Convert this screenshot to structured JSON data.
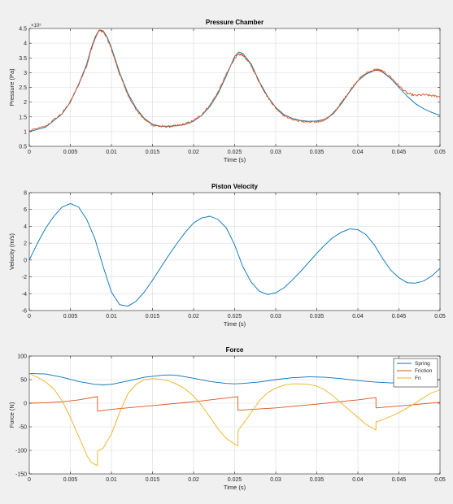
{
  "chart_data": [
    {
      "type": "line",
      "title": "Pressure Chamber",
      "xlabel": "Time (s)",
      "ylabel": "Pressure (Pa)",
      "y_exponent": "×10⁵",
      "xlim": [
        0,
        0.05
      ],
      "ylim": [
        0.5,
        4.5
      ],
      "xticks": [
        0,
        0.005,
        0.01,
        0.015,
        0.02,
        0.025,
        0.03,
        0.035,
        0.04,
        0.045,
        0.05
      ],
      "xtick_labels": [
        "0",
        "0.005",
        "0.01",
        "0.015",
        "0.02",
        "0.025",
        "0.03",
        "0.035",
        "0.04",
        "0.045",
        "0.05"
      ],
      "yticks": [
        0.5,
        1,
        1.5,
        2,
        2.5,
        3,
        3.5,
        4,
        4.5
      ],
      "ytick_labels": [
        "0.5",
        "1",
        "1.5",
        "2",
        "2.5",
        "3",
        "3.5",
        "4",
        "4.5"
      ],
      "grid": true,
      "series": [
        {
          "color": "#0072bd",
          "x": [
            0,
            0.002,
            0.004,
            0.005,
            0.006,
            0.007,
            0.0075,
            0.008,
            0.0085,
            0.009,
            0.0095,
            0.01,
            0.011,
            0.012,
            0.013,
            0.014,
            0.015,
            0.016,
            0.017,
            0.018,
            0.019,
            0.02,
            0.021,
            0.022,
            0.023,
            0.024,
            0.025,
            0.0255,
            0.026,
            0.027,
            0.028,
            0.029,
            0.03,
            0.031,
            0.032,
            0.033,
            0.034,
            0.035,
            0.036,
            0.037,
            0.038,
            0.039,
            0.04,
            0.041,
            0.042,
            0.0425,
            0.043,
            0.044,
            0.045,
            0.046,
            0.047,
            0.048,
            0.049,
            0.05
          ],
          "y": [
            1.0,
            1.15,
            1.6,
            2.0,
            2.6,
            3.3,
            3.8,
            4.2,
            4.45,
            4.42,
            4.2,
            3.85,
            3.0,
            2.3,
            1.8,
            1.45,
            1.25,
            1.18,
            1.18,
            1.2,
            1.25,
            1.35,
            1.55,
            1.85,
            2.3,
            2.9,
            3.55,
            3.7,
            3.65,
            3.3,
            2.7,
            2.2,
            1.82,
            1.58,
            1.45,
            1.38,
            1.35,
            1.36,
            1.42,
            1.6,
            1.95,
            2.35,
            2.72,
            2.95,
            3.07,
            3.08,
            3.02,
            2.8,
            2.5,
            2.2,
            1.95,
            1.78,
            1.65,
            1.55
          ]
        },
        {
          "color": "#d95319",
          "noise": true,
          "x": [
            0,
            0.002,
            0.004,
            0.005,
            0.006,
            0.007,
            0.0075,
            0.008,
            0.0085,
            0.009,
            0.0095,
            0.01,
            0.011,
            0.012,
            0.013,
            0.014,
            0.015,
            0.016,
            0.017,
            0.018,
            0.019,
            0.02,
            0.021,
            0.022,
            0.023,
            0.024,
            0.025,
            0.0255,
            0.026,
            0.027,
            0.028,
            0.029,
            0.03,
            0.031,
            0.032,
            0.033,
            0.034,
            0.035,
            0.036,
            0.037,
            0.038,
            0.039,
            0.04,
            0.041,
            0.042,
            0.0425,
            0.043,
            0.044,
            0.045,
            0.046,
            0.047,
            0.048,
            0.049,
            0.05
          ],
          "y": [
            1.02,
            1.18,
            1.62,
            2.02,
            2.58,
            3.25,
            3.75,
            4.15,
            4.43,
            4.4,
            4.15,
            3.8,
            2.95,
            2.25,
            1.75,
            1.42,
            1.22,
            1.17,
            1.17,
            1.2,
            1.26,
            1.37,
            1.58,
            1.9,
            2.35,
            2.95,
            3.5,
            3.62,
            3.6,
            3.25,
            2.68,
            2.18,
            1.8,
            1.55,
            1.42,
            1.35,
            1.32,
            1.33,
            1.4,
            1.62,
            1.98,
            2.38,
            2.75,
            2.98,
            3.1,
            3.1,
            3.05,
            2.85,
            2.55,
            2.3,
            2.22,
            2.25,
            2.22,
            2.18
          ]
        }
      ]
    },
    {
      "type": "line",
      "title": "Piston Velocity",
      "xlabel": "Time (s)",
      "ylabel": "Velocity (m/s)",
      "xlim": [
        0,
        0.05
      ],
      "ylim": [
        -6,
        8
      ],
      "xticks": [
        0,
        0.005,
        0.01,
        0.015,
        0.02,
        0.025,
        0.03,
        0.035,
        0.04,
        0.045,
        0.05
      ],
      "xtick_labels": [
        "0",
        "0.005",
        "0.01",
        "0.015",
        "0.02",
        "0.025",
        "0.03",
        "0.035",
        "0.04",
        "0.045",
        "0.05"
      ],
      "yticks": [
        -6,
        -4,
        -2,
        0,
        2,
        4,
        6,
        8
      ],
      "ytick_labels": [
        "-6",
        "-4",
        "-2",
        "0",
        "2",
        "4",
        "6",
        "8"
      ],
      "grid": true,
      "series": [
        {
          "color": "#0072bd",
          "x": [
            0,
            0.001,
            0.002,
            0.003,
            0.004,
            0.005,
            0.006,
            0.007,
            0.008,
            0.009,
            0.01,
            0.011,
            0.012,
            0.013,
            0.014,
            0.015,
            0.016,
            0.017,
            0.018,
            0.019,
            0.02,
            0.021,
            0.022,
            0.023,
            0.024,
            0.025,
            0.026,
            0.027,
            0.028,
            0.029,
            0.03,
            0.031,
            0.032,
            0.033,
            0.034,
            0.035,
            0.036,
            0.037,
            0.038,
            0.039,
            0.04,
            0.041,
            0.042,
            0.043,
            0.044,
            0.045,
            0.046,
            0.047,
            0.048,
            0.049,
            0.05
          ],
          "y": [
            0,
            2.0,
            3.8,
            5.2,
            6.3,
            6.7,
            6.3,
            4.8,
            2.5,
            -0.8,
            -3.8,
            -5.3,
            -5.5,
            -4.9,
            -3.8,
            -2.4,
            -0.9,
            0.6,
            2.0,
            3.3,
            4.4,
            5.0,
            5.2,
            4.8,
            3.8,
            1.8,
            -0.8,
            -2.6,
            -3.7,
            -4.1,
            -3.9,
            -3.3,
            -2.4,
            -1.4,
            -0.3,
            0.8,
            1.8,
            2.7,
            3.3,
            3.7,
            3.6,
            3.0,
            1.8,
            0.2,
            -1.2,
            -2.1,
            -2.7,
            -2.75,
            -2.5,
            -1.9,
            -1.0
          ]
        }
      ]
    },
    {
      "type": "line",
      "title": "Force",
      "xlabel": "Time (s)",
      "ylabel": "Force (N)",
      "xlim": [
        0,
        0.05
      ],
      "ylim": [
        -150,
        100
      ],
      "xticks": [
        0,
        0.005,
        0.01,
        0.015,
        0.02,
        0.025,
        0.03,
        0.035,
        0.04,
        0.045,
        0.05
      ],
      "xtick_labels": [
        "0",
        "0.005",
        "0.01",
        "0.015",
        "0.02",
        "0.025",
        "0.03",
        "0.035",
        "0.04",
        "0.045",
        "0.05"
      ],
      "yticks": [
        -150,
        -100,
        -50,
        0,
        50,
        100
      ],
      "ytick_labels": [
        "-150",
        "-100",
        "-50",
        "0",
        "50",
        "100"
      ],
      "grid": true,
      "legend_position": "top-right",
      "series": [
        {
          "name": "Spring",
          "color": "#0072bd",
          "x": [
            0,
            0.002,
            0.004,
            0.006,
            0.008,
            0.009,
            0.01,
            0.012,
            0.014,
            0.016,
            0.017,
            0.018,
            0.02,
            0.022,
            0.024,
            0.025,
            0.026,
            0.028,
            0.03,
            0.032,
            0.034,
            0.036,
            0.038,
            0.04,
            0.042,
            0.044,
            0.046,
            0.048,
            0.05
          ],
          "y": [
            63,
            62,
            55,
            46,
            40,
            39,
            40,
            47,
            55,
            59,
            60,
            59,
            53,
            46,
            42,
            41,
            42,
            45,
            50,
            54,
            56,
            55,
            52,
            48,
            45,
            43,
            44,
            47,
            50
          ]
        },
        {
          "name": "Friction",
          "color": "#d95319",
          "x": [
            0,
            0.002,
            0.004,
            0.006,
            0.0083,
            0.00831,
            0.01,
            0.015,
            0.02,
            0.025,
            0.0254,
            0.02541,
            0.03,
            0.035,
            0.0388,
            0.04,
            0.0422,
            0.04221,
            0.045,
            0.05
          ],
          "y": [
            0,
            1,
            3,
            7,
            14,
            -17,
            -13,
            -5,
            3,
            13,
            14,
            -15,
            -10,
            -2,
            5,
            7,
            12,
            -10,
            -6,
            2
          ]
        },
        {
          "name": "Fn",
          "color": "#edb120",
          "x": [
            0,
            0.001,
            0.002,
            0.003,
            0.004,
            0.005,
            0.006,
            0.007,
            0.0075,
            0.008,
            0.0083,
            0.00831,
            0.009,
            0.01,
            0.011,
            0.012,
            0.013,
            0.014,
            0.015,
            0.016,
            0.017,
            0.018,
            0.019,
            0.02,
            0.021,
            0.022,
            0.023,
            0.024,
            0.025,
            0.0254,
            0.02541,
            0.026,
            0.027,
            0.028,
            0.029,
            0.03,
            0.031,
            0.032,
            0.033,
            0.034,
            0.035,
            0.036,
            0.037,
            0.038,
            0.039,
            0.04,
            0.041,
            0.042,
            0.0422,
            0.04221,
            0.043,
            0.044,
            0.045,
            0.046,
            0.047,
            0.048,
            0.049,
            0.05
          ],
          "y": [
            63,
            55,
            45,
            30,
            5,
            -30,
            -70,
            -110,
            -125,
            -130,
            -132,
            -102,
            -95,
            -65,
            -20,
            20,
            40,
            50,
            52,
            51,
            47,
            40,
            30,
            15,
            -5,
            -30,
            -55,
            -75,
            -87,
            -90,
            -58,
            -45,
            -20,
            5,
            22,
            32,
            38,
            41,
            41,
            40,
            36,
            28,
            15,
            0,
            -15,
            -30,
            -45,
            -55,
            -57,
            -40,
            -35,
            -28,
            -20,
            -10,
            0,
            12,
            22,
            28
          ]
        }
      ]
    }
  ]
}
